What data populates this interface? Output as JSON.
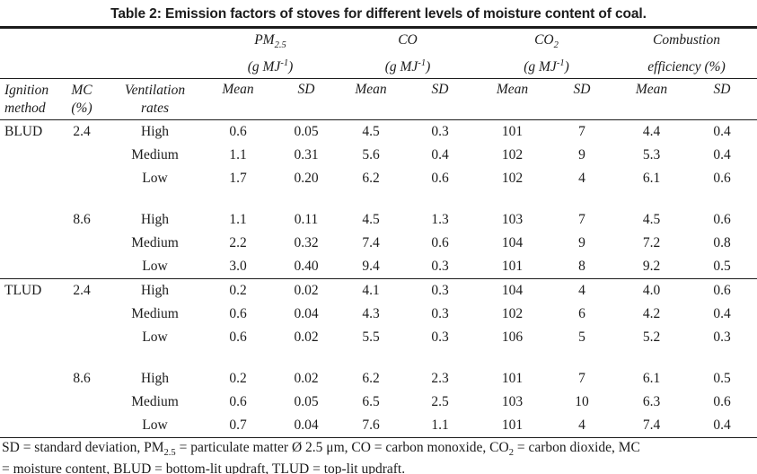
{
  "title": "Table 2: Emission factors of stoves for different levels of moisture content of coal.",
  "colors": {
    "ink": "#1c1c1c",
    "background": "#ffffff"
  },
  "table": {
    "groups": [
      {
        "name": "PM",
        "name_sub": "2.5",
        "unit_pre": "(g MJ",
        "unit_sup": "-1",
        "unit_post": ")"
      },
      {
        "name": "CO",
        "name_sub": "",
        "unit_pre": "(g MJ",
        "unit_sup": "-1",
        "unit_post": ")"
      },
      {
        "name": "CO",
        "name_sub": "2",
        "unit_pre": "(g MJ",
        "unit_sup": "-1",
        "unit_post": ")"
      },
      {
        "name": "Combustion",
        "name_sub": "",
        "unit_pre": "efficiency (%)",
        "unit_sup": "",
        "unit_post": ""
      }
    ],
    "columns": {
      "ignition": [
        "Ignition",
        "method"
      ],
      "mc": [
        "MC",
        "(%)"
      ],
      "ventilation": [
        "Ventilation",
        "rates"
      ],
      "mean": "Mean",
      "sd": "SD"
    },
    "sections": [
      {
        "method": "BLUD",
        "blocks": [
          {
            "mc": "2.4",
            "rows": [
              {
                "vent": "High",
                "vals": [
                  "0.6",
                  "0.05",
                  "4.5",
                  "0.3",
                  "101",
                  "7",
                  "4.4",
                  "0.4"
                ]
              },
              {
                "vent": "Medium",
                "vals": [
                  "1.1",
                  "0.31",
                  "5.6",
                  "0.4",
                  "102",
                  "9",
                  "5.3",
                  "0.4"
                ]
              },
              {
                "vent": "Low",
                "vals": [
                  "1.7",
                  "0.20",
                  "6.2",
                  "0.6",
                  "102",
                  "4",
                  "6.1",
                  "0.6"
                ]
              }
            ]
          },
          {
            "mc": "8.6",
            "rows": [
              {
                "vent": "High",
                "vals": [
                  "1.1",
                  "0.11",
                  "4.5",
                  "1.3",
                  "103",
                  "7",
                  "4.5",
                  "0.6"
                ]
              },
              {
                "vent": "Medium",
                "vals": [
                  "2.2",
                  "0.32",
                  "7.4",
                  "0.6",
                  "104",
                  "9",
                  "7.2",
                  "0.8"
                ]
              },
              {
                "vent": "Low",
                "vals": [
                  "3.0",
                  "0.40",
                  "9.4",
                  "0.3",
                  "101",
                  "8",
                  "9.2",
                  "0.5"
                ]
              }
            ]
          }
        ]
      },
      {
        "method": "TLUD",
        "blocks": [
          {
            "mc": "2.4",
            "rows": [
              {
                "vent": "High",
                "vals": [
                  "0.2",
                  "0.02",
                  "4.1",
                  "0.3",
                  "104",
                  "4",
                  "4.0",
                  "0.6"
                ]
              },
              {
                "vent": "Medium",
                "vals": [
                  "0.6",
                  "0.04",
                  "4.3",
                  "0.3",
                  "102",
                  "6",
                  "4.2",
                  "0.4"
                ]
              },
              {
                "vent": "Low",
                "vals": [
                  "0.6",
                  "0.02",
                  "5.5",
                  "0.3",
                  "106",
                  "5",
                  "5.2",
                  "0.3"
                ]
              }
            ]
          },
          {
            "mc": "8.6",
            "rows": [
              {
                "vent": "High",
                "vals": [
                  "0.2",
                  "0.02",
                  "6.2",
                  "2.3",
                  "101",
                  "7",
                  "6.1",
                  "0.5"
                ]
              },
              {
                "vent": "Medium",
                "vals": [
                  "0.6",
                  "0.05",
                  "6.5",
                  "2.5",
                  "103",
                  "10",
                  "6.3",
                  "0.6"
                ]
              },
              {
                "vent": "Low",
                "vals": [
                  "0.7",
                  "0.04",
                  "7.6",
                  "1.1",
                  "101",
                  "4",
                  "7.4",
                  "0.4"
                ]
              }
            ]
          }
        ]
      }
    ]
  },
  "footnote": {
    "line1": {
      "p1": "SD = standard deviation, PM",
      "sub1": "2.5",
      "p2": " = particulate matter Ø 2.5 μm, CO = carbon monoxide, CO",
      "sub2": "2",
      "p3": " = carbon dioxide, MC"
    },
    "line2": "= moisture content, BLUD = bottom-lit updraft, TLUD = top-lit updraft."
  }
}
